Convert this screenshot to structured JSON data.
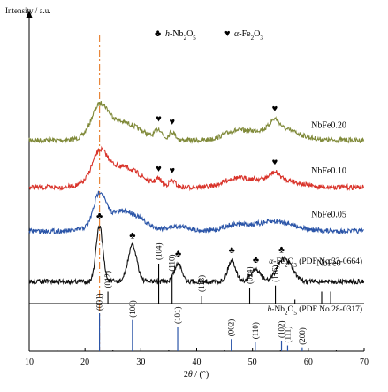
{
  "chart_data": {
    "type": "line",
    "title": "",
    "xlabel": "2θ / (°)",
    "ylabel": "Intensity / a.u.",
    "xlim": [
      10,
      70
    ],
    "x_ticks": [
      "10",
      "20",
      "30",
      "40",
      "50",
      "60",
      "70"
    ],
    "grid": false,
    "legend": {
      "position": "top-center",
      "entries": [
        {
          "marker": "♣",
          "label": "h-Nb2O5",
          "label_html": "<tspan font-style='italic'>h</tspan>-Nb<tspan baseline-shift='sub' font-size='7'>2</tspan>O<tspan baseline-shift='sub' font-size='7'>5</tspan>"
        },
        {
          "marker": "♥",
          "label": "α-Fe2O3",
          "label_html": "<tspan font-style='italic'>α</tspan>-Fe<tspan baseline-shift='sub' font-size='7'>2</tspan>O<tspan baseline-shift='sub' font-size='7'>3</tspan>"
        }
      ]
    },
    "reference_line_x": 22.6,
    "series": [
      {
        "name": "NbFe0.20",
        "color": "#808a3a",
        "baseline": 0.65,
        "peaks": [
          {
            "x": 22.6,
            "h": 0.075,
            "w": 1.4
          },
          {
            "x": 24.5,
            "h": 0.045,
            "w": 2.8
          },
          {
            "x": 28.5,
            "h": 0.03,
            "w": 2.5
          },
          {
            "x": 33.2,
            "h": 0.03,
            "w": 0.6
          },
          {
            "x": 35.6,
            "h": 0.025,
            "w": 0.6
          },
          {
            "x": 46.5,
            "h": 0.02,
            "w": 2.0
          },
          {
            "x": 50.5,
            "h": 0.02,
            "w": 3.0
          },
          {
            "x": 54.0,
            "h": 0.03,
            "w": 0.8
          },
          {
            "x": 55.5,
            "h": 0.03,
            "w": 3.0
          }
        ],
        "markers": [
          {
            "x": 33.2,
            "symbol": "♥"
          },
          {
            "x": 35.6,
            "symbol": "♥"
          },
          {
            "x": 54.0,
            "symbol": "♥"
          }
        ]
      },
      {
        "name": "NbFe0.10",
        "color": "#d9342b",
        "baseline": 0.505,
        "peaks": [
          {
            "x": 22.6,
            "h": 0.075,
            "w": 1.3
          },
          {
            "x": 24.8,
            "h": 0.05,
            "w": 3.0
          },
          {
            "x": 28.6,
            "h": 0.03,
            "w": 2.5
          },
          {
            "x": 33.2,
            "h": 0.02,
            "w": 0.6
          },
          {
            "x": 35.6,
            "h": 0.02,
            "w": 0.6
          },
          {
            "x": 46.5,
            "h": 0.02,
            "w": 2.0
          },
          {
            "x": 50.5,
            "h": 0.018,
            "w": 3.0
          },
          {
            "x": 54.0,
            "h": 0.02,
            "w": 0.8
          },
          {
            "x": 55.5,
            "h": 0.02,
            "w": 3.0
          }
        ],
        "markers": [
          {
            "x": 33.2,
            "symbol": "♥"
          },
          {
            "x": 35.6,
            "symbol": "♥"
          },
          {
            "x": 54.0,
            "symbol": "♥"
          }
        ]
      },
      {
        "name": "NbFe0.05",
        "color": "#2b55a8",
        "baseline": 0.37,
        "peaks": [
          {
            "x": 22.6,
            "h": 0.09,
            "w": 1.0
          },
          {
            "x": 25.0,
            "h": 0.04,
            "w": 3.0
          },
          {
            "x": 28.4,
            "h": 0.035,
            "w": 2.5
          },
          {
            "x": 36.8,
            "h": 0.015,
            "w": 2.0
          },
          {
            "x": 46.5,
            "h": 0.015,
            "w": 2.0
          },
          {
            "x": 50.5,
            "h": 0.012,
            "w": 3.0
          },
          {
            "x": 55.0,
            "h": 0.025,
            "w": 3.0
          }
        ],
        "markers": []
      },
      {
        "name": "NbFe0",
        "color": "#111111",
        "baseline": 0.215,
        "peaks": [
          {
            "x": 22.6,
            "h": 0.17,
            "w": 0.6
          },
          {
            "x": 28.5,
            "h": 0.11,
            "w": 0.8
          },
          {
            "x": 36.7,
            "h": 0.055,
            "w": 0.7
          },
          {
            "x": 46.3,
            "h": 0.065,
            "w": 0.7
          },
          {
            "x": 50.6,
            "h": 0.035,
            "w": 0.9
          },
          {
            "x": 55.2,
            "h": 0.06,
            "w": 1.0
          },
          {
            "x": 56.8,
            "h": 0.035,
            "w": 0.9
          }
        ],
        "markers": [
          {
            "x": 22.6,
            "symbol": "♣"
          },
          {
            "x": 28.5,
            "symbol": "♣"
          },
          {
            "x": 36.7,
            "symbol": "♣"
          },
          {
            "x": 46.3,
            "symbol": "♣"
          },
          {
            "x": 50.6,
            "symbol": "♣"
          },
          {
            "x": 55.2,
            "symbol": "♣"
          }
        ]
      }
    ],
    "references": [
      {
        "name": "α-Fe2O3 (PDF No.33-0664)",
        "label_html": "<tspan font-style='italic'>α</tspan>-Fe<tspan baseline-shift='sub' font-size='7'>2</tspan>O<tspan baseline-shift='sub' font-size='7'>3</tspan> (PDF No.33-0664)",
        "color": "#000000",
        "lines": [
          {
            "x": 24.1,
            "h": 0.3,
            "label": "(012)"
          },
          {
            "x": 33.2,
            "h": 1.0,
            "label": "(104)"
          },
          {
            "x": 35.6,
            "h": 0.72,
            "label": "(110)"
          },
          {
            "x": 40.9,
            "h": 0.2,
            "label": "(113)"
          },
          {
            "x": 49.5,
            "h": 0.4,
            "label": "(024)"
          },
          {
            "x": 54.1,
            "h": 0.45,
            "label": "(116)"
          },
          {
            "x": 57.6,
            "h": 0.1,
            "label": ""
          },
          {
            "x": 62.4,
            "h": 0.3,
            "label": ""
          },
          {
            "x": 64.0,
            "h": 0.3,
            "label": ""
          }
        ]
      },
      {
        "name": "h-Nb2O5 (PDF No.28-0317)",
        "label_html": "<tspan font-style='italic'>h</tspan>-Nb<tspan baseline-shift='sub' font-size='7'>2</tspan>O<tspan baseline-shift='sub' font-size='7'>5</tspan> (PDF No.28-0317)",
        "color": "#2b55a8",
        "lines": [
          {
            "x": 22.6,
            "h": 1.0,
            "label": "(001)"
          },
          {
            "x": 28.5,
            "h": 0.82,
            "label": "(100)"
          },
          {
            "x": 36.6,
            "h": 0.65,
            "label": "(101)"
          },
          {
            "x": 46.2,
            "h": 0.32,
            "label": "(002)"
          },
          {
            "x": 50.5,
            "h": 0.25,
            "label": "(110)"
          },
          {
            "x": 55.2,
            "h": 0.28,
            "label": "(102)"
          },
          {
            "x": 56.3,
            "h": 0.15,
            "label": "(111)"
          },
          {
            "x": 58.9,
            "h": 0.1,
            "label": "(200)"
          }
        ]
      }
    ]
  }
}
